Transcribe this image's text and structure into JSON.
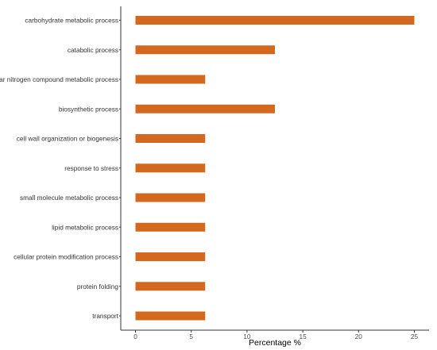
{
  "chart_data": {
    "type": "bar",
    "orientation": "horizontal",
    "categories": [
      "carbohydrate metabolic process",
      "catabolic process",
      "cellular nitrogen compound metabolic process",
      "biosynthetic process",
      "cell wall organization or biogenesis",
      "response to stress",
      "small molecule metabolic process",
      "lipid metabolic process",
      "cellular protein modification process",
      "protein folding",
      "transport"
    ],
    "values": [
      25,
      12.5,
      6.25,
      12.5,
      6.25,
      6.25,
      6.25,
      6.25,
      6.25,
      6.25,
      6.25
    ],
    "xlabel": "Percentage %",
    "ylabel": "",
    "title": "",
    "xlim": [
      0,
      25
    ],
    "xticks": [
      "0",
      "5",
      "10",
      "15",
      "20",
      "25"
    ],
    "grid": false,
    "legend": "none",
    "bar_color": "#d2691e"
  }
}
